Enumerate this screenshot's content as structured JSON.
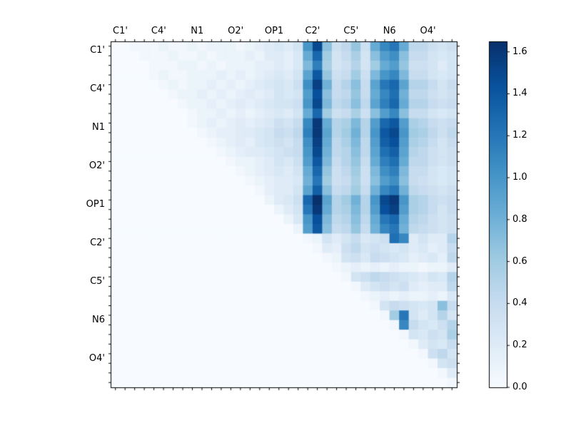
{
  "chart_data": {
    "type": "heatmap",
    "title": "",
    "colormap": "Blues",
    "axis_labels": [
      "C1'",
      "C4'",
      "N1",
      "O2'",
      "OP1",
      "C2'",
      "C5'",
      "N6",
      "O4'"
    ],
    "cells_per_group": 4,
    "n": 36,
    "vmax": 1.65,
    "colormap_stops": [
      "#f7fbff",
      "#deebf7",
      "#c6dbef",
      "#9ecae1",
      "#6baed6",
      "#4292c6",
      "#2171b5",
      "#08519c",
      "#08306b"
    ],
    "colorbar_ticks": [
      "0.0",
      "0.2",
      "0.4",
      "0.6",
      "0.8",
      "1.0",
      "1.2",
      "1.4",
      "1.6"
    ],
    "colorbar_tick_values": [
      0,
      0.2,
      0.4,
      0.6,
      0.8,
      1.0,
      1.2,
      1.4,
      1.6
    ],
    "matrix": [
      [
        0,
        0,
        0.05,
        0.05,
        0.05,
        0.1,
        0.05,
        0.05,
        0.1,
        0.05,
        0.1,
        0.1,
        0.1,
        0.05,
        0.1,
        0.15,
        0.2,
        0.25,
        0.2,
        0.3,
        1.0,
        1.5,
        0.7,
        0.35,
        0.45,
        0.65,
        0.35,
        0.85,
        1.1,
        1.2,
        0.85,
        0.45,
        0.45,
        0.35,
        0.3,
        0.35
      ],
      [
        0,
        0,
        0,
        0.05,
        0.05,
        0.05,
        0.1,
        0.05,
        0.05,
        0.1,
        0.05,
        0.1,
        0.1,
        0.1,
        0.15,
        0.1,
        0.2,
        0.2,
        0.15,
        0.25,
        0.85,
        1.3,
        0.6,
        0.3,
        0.4,
        0.55,
        0.3,
        0.7,
        0.95,
        1.05,
        0.7,
        0.4,
        0.4,
        0.3,
        0.25,
        0.3
      ],
      [
        0,
        0,
        0,
        0,
        0.05,
        0.05,
        0.05,
        0.1,
        0.1,
        0.05,
        0.1,
        0.05,
        0.1,
        0.1,
        0.1,
        0.15,
        0.15,
        0.2,
        0.15,
        0.25,
        0.75,
        1.15,
        0.55,
        0.3,
        0.35,
        0.5,
        0.3,
        0.6,
        0.85,
        0.95,
        0.65,
        0.35,
        0.35,
        0.3,
        0.2,
        0.3
      ],
      [
        0,
        0,
        0,
        0,
        0.05,
        0.1,
        0.05,
        0.05,
        0.1,
        0.1,
        0.1,
        0.15,
        0.1,
        0.15,
        0.1,
        0.15,
        0.2,
        0.25,
        0.2,
        0.3,
        0.9,
        1.4,
        0.65,
        0.35,
        0.4,
        0.6,
        0.35,
        0.75,
        1.0,
        1.1,
        0.75,
        0.4,
        0.4,
        0.3,
        0.25,
        0.3
      ],
      [
        0,
        0,
        0,
        0,
        0,
        0.05,
        0.1,
        0.05,
        0.1,
        0.1,
        0.15,
        0.1,
        0.15,
        0.1,
        0.15,
        0.2,
        0.25,
        0.3,
        0.25,
        0.35,
        1.05,
        1.55,
        0.8,
        0.4,
        0.5,
        0.7,
        0.4,
        0.9,
        1.2,
        1.3,
        0.9,
        0.5,
        0.5,
        0.4,
        0.3,
        0.4
      ],
      [
        0,
        0,
        0,
        0,
        0,
        0,
        0.05,
        0.1,
        0.1,
        0.15,
        0.1,
        0.15,
        0.1,
        0.15,
        0.2,
        0.15,
        0.2,
        0.3,
        0.25,
        0.3,
        0.95,
        1.45,
        0.7,
        0.4,
        0.45,
        0.65,
        0.4,
        0.85,
        1.1,
        1.25,
        0.8,
        0.45,
        0.45,
        0.35,
        0.3,
        0.35
      ],
      [
        0,
        0,
        0,
        0,
        0,
        0,
        0,
        0.05,
        0.1,
        0.1,
        0.15,
        0.1,
        0.15,
        0.2,
        0.15,
        0.2,
        0.25,
        0.3,
        0.3,
        0.35,
        1.0,
        1.5,
        0.75,
        0.45,
        0.5,
        0.7,
        0.45,
        0.9,
        1.15,
        1.3,
        0.85,
        0.5,
        0.5,
        0.4,
        0.35,
        0.4
      ],
      [
        0,
        0,
        0,
        0,
        0,
        0,
        0,
        0,
        0.05,
        0.1,
        0.1,
        0.15,
        0.1,
        0.15,
        0.1,
        0.15,
        0.2,
        0.25,
        0.2,
        0.3,
        0.85,
        1.3,
        0.6,
        0.35,
        0.4,
        0.55,
        0.35,
        0.7,
        0.95,
        1.1,
        0.7,
        0.4,
        0.4,
        0.3,
        0.25,
        0.3
      ],
      [
        0,
        0,
        0,
        0,
        0,
        0,
        0,
        0,
        0.05,
        0.1,
        0.15,
        0.1,
        0.15,
        0.2,
        0.15,
        0.2,
        0.25,
        0.35,
        0.3,
        0.4,
        1.1,
        1.6,
        0.85,
        0.5,
        0.55,
        0.75,
        0.5,
        0.95,
        1.3,
        1.4,
        0.95,
        0.55,
        0.5,
        0.4,
        0.35,
        0.4
      ],
      [
        0,
        0,
        0,
        0,
        0,
        0,
        0,
        0,
        0,
        0.05,
        0.1,
        0.15,
        0.15,
        0.2,
        0.2,
        0.25,
        0.3,
        0.4,
        0.35,
        0.45,
        1.15,
        1.6,
        0.9,
        0.5,
        0.6,
        0.8,
        0.5,
        1.0,
        1.4,
        1.5,
        1.0,
        0.6,
        0.55,
        0.45,
        0.35,
        0.45
      ],
      [
        0,
        0,
        0,
        0,
        0,
        0,
        0,
        0,
        0,
        0,
        0.05,
        0.1,
        0.15,
        0.2,
        0.15,
        0.25,
        0.3,
        0.35,
        0.3,
        0.4,
        1.05,
        1.55,
        0.85,
        0.45,
        0.55,
        0.75,
        0.45,
        0.95,
        1.35,
        1.45,
        0.95,
        0.55,
        0.5,
        0.4,
        0.3,
        0.4
      ],
      [
        0,
        0,
        0,
        0,
        0,
        0,
        0,
        0,
        0,
        0,
        0,
        0.05,
        0.1,
        0.15,
        0.2,
        0.2,
        0.25,
        0.3,
        0.35,
        0.4,
        1.0,
        1.5,
        0.8,
        0.45,
        0.5,
        0.7,
        0.45,
        0.9,
        1.25,
        1.35,
        0.9,
        0.5,
        0.45,
        0.35,
        0.3,
        0.35
      ],
      [
        0,
        0,
        0,
        0,
        0,
        0,
        0,
        0,
        0,
        0,
        0,
        0,
        0.05,
        0.1,
        0.1,
        0.15,
        0.2,
        0.3,
        0.25,
        0.35,
        0.95,
        1.4,
        0.75,
        0.4,
        0.5,
        0.65,
        0.4,
        0.85,
        1.15,
        1.25,
        0.85,
        0.45,
        0.45,
        0.35,
        0.3,
        0.35
      ],
      [
        0,
        0,
        0,
        0,
        0,
        0,
        0,
        0,
        0,
        0,
        0,
        0,
        0,
        0.05,
        0.1,
        0.15,
        0.2,
        0.25,
        0.2,
        0.3,
        0.85,
        1.3,
        0.65,
        0.35,
        0.45,
        0.6,
        0.35,
        0.75,
        1.05,
        1.15,
        0.75,
        0.4,
        0.4,
        0.3,
        0.25,
        0.3
      ],
      [
        0,
        0,
        0,
        0,
        0,
        0,
        0,
        0,
        0,
        0,
        0,
        0,
        0,
        0,
        0.05,
        0.1,
        0.15,
        0.2,
        0.2,
        0.25,
        0.8,
        1.2,
        0.6,
        0.35,
        0.4,
        0.55,
        0.35,
        0.7,
        0.95,
        1.05,
        0.7,
        0.4,
        0.35,
        0.3,
        0.25,
        0.3
      ],
      [
        0,
        0,
        0,
        0,
        0,
        0,
        0,
        0,
        0,
        0,
        0,
        0,
        0,
        0,
        0,
        0.05,
        0.15,
        0.2,
        0.2,
        0.3,
        0.9,
        1.35,
        0.7,
        0.4,
        0.45,
        0.6,
        0.4,
        0.8,
        1.1,
        1.2,
        0.8,
        0.45,
        0.4,
        0.35,
        0.3,
        0.35
      ],
      [
        0,
        0,
        0,
        0,
        0,
        0,
        0,
        0,
        0,
        0,
        0,
        0,
        0,
        0,
        0,
        0,
        0.1,
        0.2,
        0.25,
        0.35,
        1.3,
        1.65,
        0.9,
        0.5,
        0.6,
        0.8,
        0.5,
        1.0,
        1.5,
        1.6,
        1.0,
        0.55,
        0.5,
        0.4,
        0.35,
        0.4
      ],
      [
        0,
        0,
        0,
        0,
        0,
        0,
        0,
        0,
        0,
        0,
        0,
        0,
        0,
        0,
        0,
        0,
        0,
        0.1,
        0.2,
        0.3,
        1.2,
        1.6,
        0.85,
        0.5,
        0.55,
        0.75,
        0.5,
        0.95,
        1.45,
        1.55,
        0.95,
        0.55,
        0.5,
        0.4,
        0.3,
        0.4
      ],
      [
        0,
        0,
        0,
        0,
        0,
        0,
        0,
        0,
        0,
        0,
        0,
        0,
        0,
        0,
        0,
        0,
        0,
        0,
        0.1,
        0.25,
        1.0,
        1.45,
        0.75,
        0.45,
        0.5,
        0.7,
        0.45,
        0.85,
        1.2,
        1.3,
        0.85,
        0.5,
        0.45,
        0.35,
        0.3,
        0.35
      ],
      [
        0,
        0,
        0,
        0,
        0,
        0,
        0,
        0,
        0,
        0,
        0,
        0,
        0,
        0,
        0,
        0,
        0,
        0,
        0,
        0.1,
        0.95,
        1.4,
        0.7,
        0.4,
        0.45,
        0.65,
        0.4,
        0.8,
        1.1,
        1.2,
        0.8,
        0.45,
        0.4,
        0.35,
        0.3,
        0.35
      ],
      [
        0,
        0,
        0,
        0,
        0,
        0,
        0,
        0,
        0,
        0,
        0,
        0,
        0,
        0,
        0,
        0,
        0,
        0,
        0,
        0,
        0.05,
        0.1,
        0.3,
        0.2,
        0.3,
        0.4,
        0.25,
        0.3,
        0.35,
        1.25,
        1.1,
        0.2,
        0.3,
        0.2,
        0.2,
        0.5
      ],
      [
        0,
        0,
        0,
        0,
        0,
        0,
        0,
        0,
        0,
        0,
        0,
        0,
        0,
        0,
        0,
        0,
        0,
        0,
        0,
        0,
        0,
        0.05,
        0.2,
        0.15,
        0.35,
        0.45,
        0.3,
        0.35,
        0.3,
        0.25,
        0.3,
        0.2,
        0.25,
        0.15,
        0.2,
        0.4
      ],
      [
        0,
        0,
        0,
        0,
        0,
        0,
        0,
        0,
        0,
        0,
        0,
        0,
        0,
        0,
        0,
        0,
        0,
        0,
        0,
        0,
        0,
        0,
        0.05,
        0.1,
        0.3,
        0.35,
        0.25,
        0.4,
        0.35,
        0.3,
        0.25,
        0.15,
        0.2,
        0.25,
        0.15,
        0.45
      ],
      [
        0,
        0,
        0,
        0,
        0,
        0,
        0,
        0,
        0,
        0,
        0,
        0,
        0,
        0,
        0,
        0,
        0,
        0,
        0,
        0,
        0,
        0,
        0,
        0.05,
        0.1,
        0.15,
        0.1,
        0.15,
        0.1,
        0.15,
        0.1,
        0.1,
        0.05,
        0.1,
        0.1,
        0.2
      ],
      [
        0,
        0,
        0,
        0,
        0,
        0,
        0,
        0,
        0,
        0,
        0,
        0,
        0,
        0,
        0,
        0,
        0,
        0,
        0,
        0,
        0,
        0,
        0,
        0,
        0.05,
        0.3,
        0.35,
        0.45,
        0.4,
        0.35,
        0.3,
        0.25,
        0.2,
        0.3,
        0.25,
        0.5
      ],
      [
        0,
        0,
        0,
        0,
        0,
        0,
        0,
        0,
        0,
        0,
        0,
        0,
        0,
        0,
        0,
        0,
        0,
        0,
        0,
        0,
        0,
        0,
        0,
        0,
        0,
        0.05,
        0.2,
        0.3,
        0.35,
        0.3,
        0.35,
        0.2,
        0.15,
        0.2,
        0.2,
        0.45
      ],
      [
        0,
        0,
        0,
        0,
        0,
        0,
        0,
        0,
        0,
        0,
        0,
        0,
        0,
        0,
        0,
        0,
        0,
        0,
        0,
        0,
        0,
        0,
        0,
        0,
        0,
        0,
        0.05,
        0.1,
        0.15,
        0.1,
        0.15,
        0.1,
        0.1,
        0.15,
        0.1,
        0.25
      ],
      [
        0,
        0,
        0,
        0,
        0,
        0,
        0,
        0,
        0,
        0,
        0,
        0,
        0,
        0,
        0,
        0,
        0,
        0,
        0,
        0,
        0,
        0,
        0,
        0,
        0,
        0,
        0,
        0.05,
        0.3,
        0.4,
        0.35,
        0.3,
        0.25,
        0.3,
        0.7,
        0.4
      ],
      [
        0,
        0,
        0,
        0,
        0,
        0,
        0,
        0,
        0,
        0,
        0,
        0,
        0,
        0,
        0,
        0,
        0,
        0,
        0,
        0,
        0,
        0,
        0,
        0,
        0,
        0,
        0,
        0,
        0.05,
        0.6,
        1.2,
        0.3,
        0.2,
        0.3,
        0.5,
        0.3
      ],
      [
        0,
        0,
        0,
        0,
        0,
        0,
        0,
        0,
        0,
        0,
        0,
        0,
        0,
        0,
        0,
        0,
        0,
        0,
        0,
        0,
        0,
        0,
        0,
        0,
        0,
        0,
        0,
        0,
        0,
        0.05,
        1.1,
        0.4,
        0.3,
        0.25,
        0.35,
        0.5
      ],
      [
        0,
        0,
        0,
        0,
        0,
        0,
        0,
        0,
        0,
        0,
        0,
        0,
        0,
        0,
        0,
        0,
        0,
        0,
        0,
        0,
        0,
        0,
        0,
        0,
        0,
        0,
        0,
        0,
        0,
        0,
        0.05,
        0.3,
        0.25,
        0.35,
        0.3,
        0.55
      ],
      [
        0,
        0,
        0,
        0,
        0,
        0,
        0,
        0,
        0,
        0,
        0,
        0,
        0,
        0,
        0,
        0,
        0,
        0,
        0,
        0,
        0,
        0,
        0,
        0,
        0,
        0,
        0,
        0,
        0,
        0,
        0,
        0.05,
        0.2,
        0.3,
        0.25,
        0.4
      ],
      [
        0,
        0,
        0,
        0,
        0,
        0,
        0,
        0,
        0,
        0,
        0,
        0,
        0,
        0,
        0,
        0,
        0,
        0,
        0,
        0,
        0,
        0,
        0,
        0,
        0,
        0,
        0,
        0,
        0,
        0,
        0,
        0,
        0.05,
        0.35,
        0.45,
        0.3
      ],
      [
        0,
        0,
        0,
        0,
        0,
        0,
        0,
        0,
        0,
        0,
        0,
        0,
        0,
        0,
        0,
        0,
        0,
        0,
        0,
        0,
        0,
        0,
        0,
        0,
        0,
        0,
        0,
        0,
        0,
        0,
        0,
        0,
        0,
        0.05,
        0.3,
        0.35
      ],
      [
        0,
        0,
        0,
        0,
        0,
        0,
        0,
        0,
        0,
        0,
        0,
        0,
        0,
        0,
        0,
        0,
        0,
        0,
        0,
        0,
        0,
        0,
        0,
        0,
        0,
        0,
        0,
        0,
        0,
        0,
        0,
        0,
        0,
        0,
        0.05,
        0.2
      ],
      [
        0,
        0,
        0,
        0,
        0,
        0,
        0,
        0,
        0,
        0,
        0,
        0,
        0,
        0,
        0,
        0,
        0,
        0,
        0,
        0,
        0,
        0,
        0,
        0,
        0,
        0,
        0,
        0,
        0,
        0,
        0,
        0,
        0,
        0,
        0,
        0.05
      ]
    ]
  }
}
